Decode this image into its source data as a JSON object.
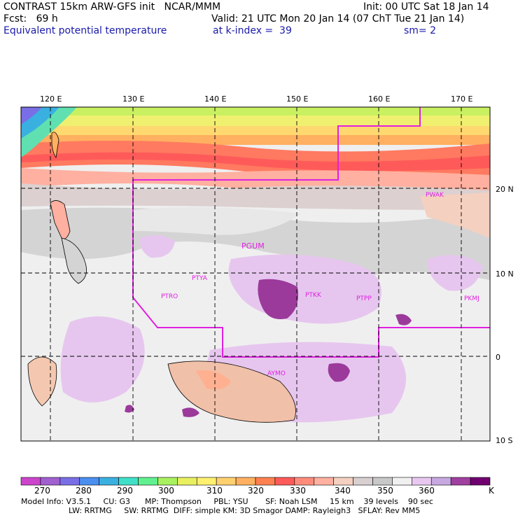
{
  "header": {
    "line1_left": "CONTRAST 15km ARW-GFS init   NCAR/MMM",
    "line1_right": "Init: 00 UTC Sat 18 Jan 14",
    "line2_left": "Fcst:   69 h",
    "line2_right": "Valid: 21 UTC Mon 20 Jan 14 (07 ChT Tue 21 Jan 14)",
    "line3_left": "Equivalent potential temperature",
    "line3_mid": "at k-index =  39",
    "line3_right": "sm= 2"
  },
  "map": {
    "lon_labels": [
      "120 E",
      "130 E",
      "140 E",
      "150 E",
      "160 E",
      "170 E"
    ],
    "lat_labels": [
      "20 N",
      "10 N",
      "0",
      "10 S"
    ],
    "stations": [
      "PWAK",
      "PGUM",
      "PTYA",
      "PTRO",
      "PTKK",
      "PTPP",
      "PKMJ",
      "AYMO"
    ],
    "boundary_color": "#e020e0"
  },
  "colorbar": {
    "labels": [
      "270",
      "280",
      "290",
      "300",
      "310",
      "320",
      "330",
      "340",
      "350",
      "360"
    ],
    "unit": "K",
    "colors": [
      "#cc44cc",
      "#a060d0",
      "#7a6ee6",
      "#4a8ef0",
      "#3ab0e0",
      "#40e0c8",
      "#60f090",
      "#a8f060",
      "#e8f060",
      "#fff070",
      "#ffd070",
      "#ffb060",
      "#ff8050",
      "#ff5a5a",
      "#ff8c7a",
      "#ffb0a0",
      "#f4d0c0",
      "#d8d0d0",
      "#c8c8c8",
      "#f0f0f0",
      "#e8c8f0",
      "#c8a8e0",
      "#a040a0",
      "#700070"
    ]
  },
  "footer": {
    "line1": "Model Info: V3.5.1     CU: G3      MP: Thompson     PBL: YSU       SF: Noah LSM     15 km    39 levels    90 sec",
    "line2": "LW: RRTMG     SW: RRTMG  DIFF: simple KM: 3D Smagor DAMP: Rayleigh3   SFLAY: Rev MM5"
  }
}
